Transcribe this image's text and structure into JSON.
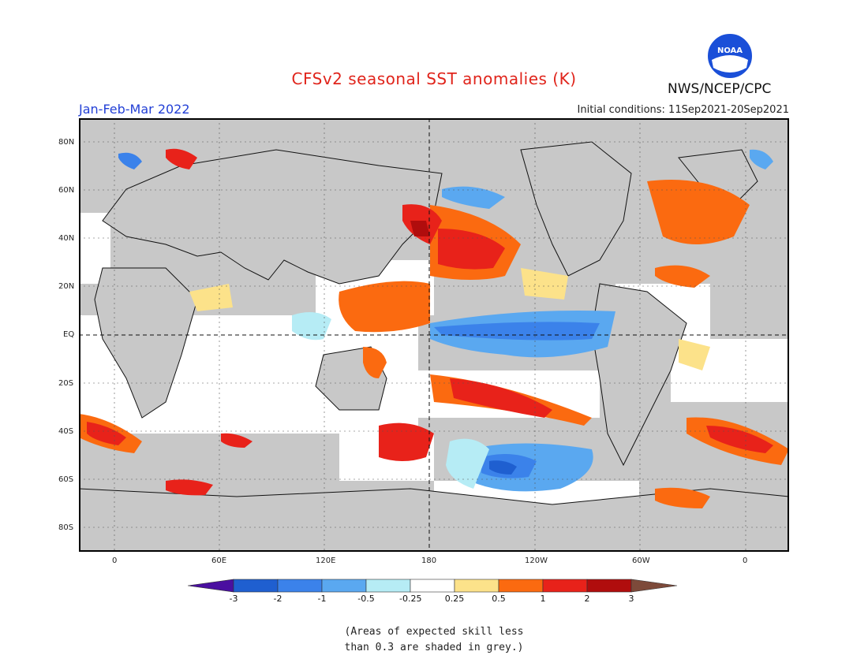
{
  "header": {
    "title": "CFSv2 seasonal SST anomalies (K)",
    "period": "Jan-Feb-Mar 2022",
    "initial_conditions": "Initial conditions: 11Sep2021-20Sep2021",
    "agency": "NWS/NCEP/CPC",
    "logo_text": "NOAA"
  },
  "map": {
    "lat_labels": [
      "80N",
      "60N",
      "40N",
      "20N",
      "EQ",
      "20S",
      "40S",
      "60S",
      "80S"
    ],
    "lon_labels": [
      "0",
      "60E",
      "120E",
      "180",
      "120W",
      "60W",
      "0"
    ],
    "land_color": "#c8c8c8",
    "ocean_neutral_color": "#ffffff"
  },
  "colorbar": {
    "labels": [
      "-3",
      "-2",
      "-1",
      "-0.5",
      "-0.25",
      "0.25",
      "0.5",
      "1",
      "2",
      "3"
    ],
    "colors": [
      "#4a0fa0",
      "#1f5fd0",
      "#3b82ea",
      "#5aa8f0",
      "#b6ecf5",
      "#ffffff",
      "#fce28a",
      "#fb6a10",
      "#e8221a",
      "#b00d0d",
      "#7d4a3a"
    ]
  },
  "note": {
    "line1": "(Areas of expected skill less",
    "line2": "than 0.3 are shaded in grey.)"
  }
}
